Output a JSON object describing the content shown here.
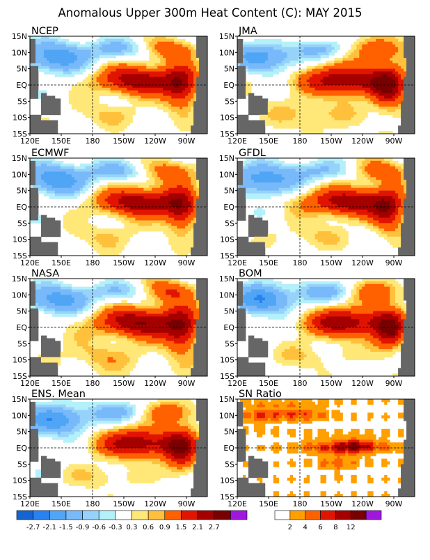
{
  "title": "Anomalous Upper 300m Heat Content (C): MAY 2015",
  "lat_labels": [
    "15N",
    "10N",
    "5N",
    "EQ",
    "5S",
    "10S",
    "15S"
  ],
  "lon_labels": [
    "120E",
    "150E",
    "180",
    "150W",
    "120W",
    "90W"
  ],
  "panels": [
    {
      "id": "ncep",
      "label": "NCEP"
    },
    {
      "id": "jma",
      "label": "JMA"
    },
    {
      "id": "ecmwf",
      "label": "ECMWF"
    },
    {
      "id": "gfdl",
      "label": "GFDL"
    },
    {
      "id": "nasa",
      "label": "NASA"
    },
    {
      "id": "bom",
      "label": "BOM"
    },
    {
      "id": "ens",
      "label": "ENS. Mean"
    },
    {
      "id": "sn",
      "label": "SN Ratio"
    }
  ],
  "anomaly_colorbar": {
    "colors": [
      "#1464d2",
      "#2882f0",
      "#50a5f5",
      "#78b9fa",
      "#96d2fa",
      "#b4f0fa",
      "#ffffff",
      "#ffe878",
      "#ffc03c",
      "#ff6000",
      "#e11400",
      "#a50000",
      "#780000",
      "#9f17de"
    ],
    "labels": [
      "-2.7",
      "-2.1",
      "-1.5",
      "-0.9",
      "-0.6",
      "-0.3",
      "0.3",
      "0.6",
      "0.9",
      "1.5",
      "2.1",
      "2.7"
    ]
  },
  "sn_colorbar": {
    "colors": [
      "#ffffff",
      "#ffa000",
      "#ff6000",
      "#e11400",
      "#a50000",
      "#780000",
      "#9f17de"
    ],
    "labels": [
      "2",
      "4",
      "6",
      "8",
      "12"
    ]
  },
  "land_color": "#666666"
}
